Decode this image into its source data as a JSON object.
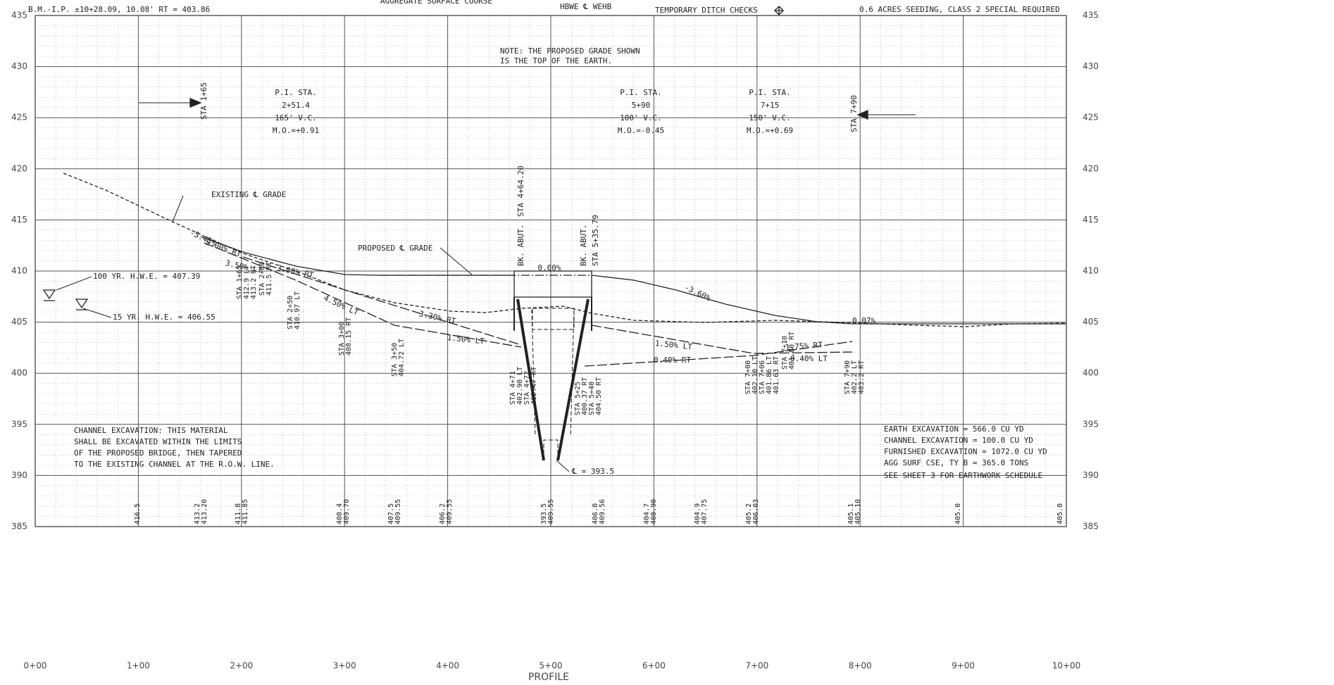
{
  "header": {
    "bm": "B.M.-I.P. ±10+28.09, 10.08' RT = 403.86",
    "surface": "AGGREGATE SURFACE COURSE",
    "hb": "HBWE ℄ WEHB",
    "ditch": "TEMPORARY DITCH CHECKS",
    "seeding": "0.6 ACRES SEEDING, CLASS 2 SPECIAL REQUIRED"
  },
  "axes": {
    "yticks": [
      435,
      430,
      425,
      420,
      415,
      410,
      405,
      400,
      395,
      390,
      385
    ],
    "xticks": [
      "0+00",
      "1+00",
      "2+00",
      "3+00",
      "4+00",
      "5+00",
      "6+00",
      "7+00",
      "8+00",
      "9+00",
      "10+00"
    ]
  },
  "title": "PROFILE",
  "annotations": [
    "NOTE: THE PROPOSED GRADE SHOWN",
    "IS THE TOP OF THE EARTH.",
    "P.I. STA.",
    "2+51.4",
    "165' V.C.",
    "M.O.=+0.91",
    "P.I. STA.",
    "5+90",
    "100' V.C.",
    "M.O.=-0.45",
    "P.I. STA.",
    "7+15",
    "150' V.C.",
    "M.O.=+0.69",
    "STA 1+65",
    "STA 7+90",
    "EXISTING ℄ GRADE",
    "PROPOSED ℄ GRADE",
    "100 YR. H.W.E. = 407.39",
    "15 YR. H.W.E. = 406.55",
    "BK. ABUT.",
    "STA 4+64.20",
    "BK. ABUT.",
    "STA 5+35.79",
    "0.00%",
    "-5.43%",
    "5.00% RT",
    "3.50% LT",
    "3.08% RT",
    "4.50% LT",
    "3.30% RT",
    "1.50% LT",
    "-3.60%",
    "0.07%",
    "1.50% LT",
    "0.40% RT",
    "1.75% RT",
    "0.40% LT",
    "℄ = 393.5",
    "CHANNEL EXCAVATION: THIS MATERIAL",
    "SHALL BE EXCAVATED WITHIN THE LIMITS",
    "OF THE PROPOSED BRIDGE, THEN TAPERED",
    "TO THE EXISTING CHANNEL AT THE R.O.W. LINE.",
    "EARTH EXCAVATION     = 566.0  CU YD",
    "CHANNEL EXCAVATION   = 100.0  CU YD",
    "FURNISHED EXCAVATION = 1072.0 CU YD",
    "AGG SURF CSE, TY B   = 365.0  TONS",
    "SEE SHEET 3 FOR EARTHWORK SCHEDULE"
  ],
  "callouts": [
    [
      "STA 1+65",
      "412.9 LT",
      "413.2 RT"
    ],
    [
      "STA 2+00",
      "411.5 RT"
    ],
    [
      "STA 2+50",
      "410.97 LT"
    ],
    [
      "STA 3+00",
      "408.15 RT"
    ],
    [
      "STA 3+50",
      "404.72 LT"
    ],
    [
      "STA 4+71",
      "402.90 LT",
      "STA 4+72",
      "402.47 RT"
    ],
    [
      "STA 5+25",
      "400.37 RT",
      "STA 5+40",
      "404.50 RT"
    ],
    [
      "STA 7+00",
      "402.10 LT",
      "STA 7+06",
      "401.86 LT",
      "401.63 RT"
    ],
    [
      "STA 7+10",
      "401.80 RT"
    ],
    [
      "STA 7+90",
      "402.2 LT",
      "403.2 RT"
    ]
  ],
  "bottom_elevations": [
    [
      "416.5"
    ],
    [
      "413.2",
      "413.20"
    ],
    [
      "411.8",
      "411.85"
    ],
    [
      "408.4",
      "409.70"
    ],
    [
      "407.5",
      "409.55"
    ],
    [
      "406.2",
      "409.55"
    ],
    [
      "393.5",
      "409.55"
    ],
    [
      "406.0",
      "409.56"
    ],
    [
      "404.7",
      "408.90"
    ],
    [
      "404.9",
      "407.75"
    ],
    [
      "405.2",
      "406.03"
    ],
    [
      "405.1",
      "405.10"
    ],
    [
      "405.0"
    ],
    [
      "405.0"
    ]
  ]
}
